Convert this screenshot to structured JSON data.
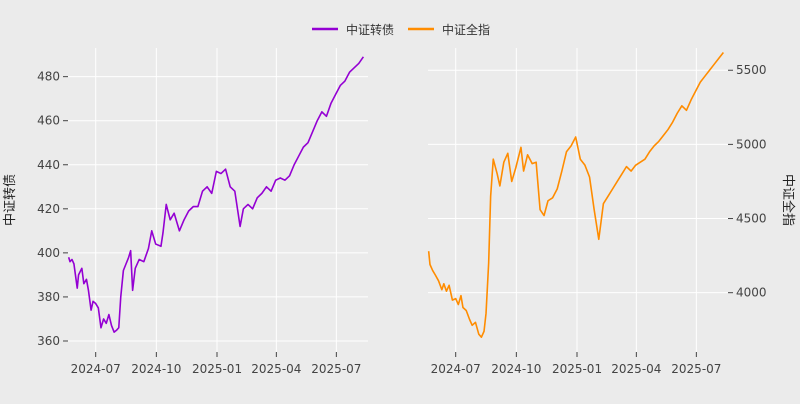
{
  "chart_data": [
    {
      "type": "line",
      "panel": "left",
      "x_axis": "date",
      "xlim": [
        "2024-05-20",
        "2025-08-18"
      ],
      "xticks": [
        "2024-07-01",
        "2024-10-01",
        "2025-01-01",
        "2025-04-01",
        "2025-07-01"
      ],
      "xtick_labels": [
        "2024-07",
        "2024-10",
        "2025-01",
        "2025-04",
        "2025-07"
      ],
      "ylim": [
        355,
        493
      ],
      "yticks": [
        360,
        380,
        400,
        420,
        440,
        460,
        480
      ],
      "ytick_labels": [
        "360",
        "380",
        "400",
        "420",
        "440",
        "460",
        "480"
      ],
      "ylabel": "中证转债",
      "y_axis_side": "left",
      "grid": true,
      "series": [
        {
          "name": "中证转债",
          "color": "#9400d3",
          "points": [
            [
              "2024-05-21",
              398
            ],
            [
              "2024-05-23",
              396
            ],
            [
              "2024-05-26",
              397
            ],
            [
              "2024-05-29",
              395
            ],
            [
              "2024-06-03",
              384
            ],
            [
              "2024-06-05",
              390
            ],
            [
              "2024-06-10",
              393
            ],
            [
              "2024-06-13",
              386
            ],
            [
              "2024-06-17",
              388
            ],
            [
              "2024-06-20",
              383
            ],
            [
              "2024-06-24",
              374
            ],
            [
              "2024-06-27",
              378
            ],
            [
              "2024-07-01",
              377
            ],
            [
              "2024-07-05",
              375
            ],
            [
              "2024-07-09",
              366
            ],
            [
              "2024-07-13",
              370
            ],
            [
              "2024-07-17",
              368
            ],
            [
              "2024-07-21",
              372
            ],
            [
              "2024-07-25",
              367
            ],
            [
              "2024-07-29",
              364
            ],
            [
              "2024-08-02",
              365
            ],
            [
              "2024-08-05",
              366
            ],
            [
              "2024-08-08",
              380
            ],
            [
              "2024-08-12",
              392
            ],
            [
              "2024-08-16",
              395
            ],
            [
              "2024-08-20",
              398
            ],
            [
              "2024-08-23",
              401
            ],
            [
              "2024-08-26",
              383
            ],
            [
              "2024-08-30",
              393
            ],
            [
              "2024-09-05",
              397
            ],
            [
              "2024-09-12",
              396
            ],
            [
              "2024-09-19",
              402
            ],
            [
              "2024-09-24",
              410
            ],
            [
              "2024-09-30",
              404
            ],
            [
              "2024-10-08",
              403
            ],
            [
              "2024-10-11",
              409
            ],
            [
              "2024-10-16",
              422
            ],
            [
              "2024-10-22",
              415
            ],
            [
              "2024-10-28",
              418
            ],
            [
              "2024-11-05",
              410
            ],
            [
              "2024-11-12",
              415
            ],
            [
              "2024-11-19",
              419
            ],
            [
              "2024-11-26",
              421
            ],
            [
              "2024-12-03",
              421
            ],
            [
              "2024-12-10",
              428
            ],
            [
              "2024-12-17",
              430
            ],
            [
              "2024-12-24",
              427
            ],
            [
              "2024-12-31",
              437
            ],
            [
              "2025-01-07",
              436
            ],
            [
              "2025-01-14",
              438
            ],
            [
              "2025-01-21",
              430
            ],
            [
              "2025-01-28",
              428
            ],
            [
              "2025-02-05",
              412
            ],
            [
              "2025-02-10",
              420
            ],
            [
              "2025-02-17",
              422
            ],
            [
              "2025-02-24",
              420
            ],
            [
              "2025-03-03",
              425
            ],
            [
              "2025-03-10",
              427
            ],
            [
              "2025-03-17",
              430
            ],
            [
              "2025-03-24",
              428
            ],
            [
              "2025-03-31",
              433
            ],
            [
              "2025-04-07",
              434
            ],
            [
              "2025-04-14",
              433
            ],
            [
              "2025-04-21",
              435
            ],
            [
              "2025-04-28",
              440
            ],
            [
              "2025-05-05",
              444
            ],
            [
              "2025-05-12",
              448
            ],
            [
              "2025-05-19",
              450
            ],
            [
              "2025-05-26",
              455
            ],
            [
              "2025-06-02",
              460
            ],
            [
              "2025-06-09",
              464
            ],
            [
              "2025-06-16",
              462
            ],
            [
              "2025-06-23",
              468
            ],
            [
              "2025-06-30",
              472
            ],
            [
              "2025-07-07",
              476
            ],
            [
              "2025-07-14",
              478
            ],
            [
              "2025-07-21",
              482
            ],
            [
              "2025-07-28",
              484
            ],
            [
              "2025-08-04",
              486
            ],
            [
              "2025-08-11",
              489
            ]
          ]
        }
      ]
    },
    {
      "type": "line",
      "panel": "right",
      "x_axis": "date",
      "xlim": [
        "2024-05-20",
        "2025-08-18"
      ],
      "xticks": [
        "2024-07-01",
        "2024-10-01",
        "2025-01-01",
        "2025-04-01",
        "2025-07-01"
      ],
      "xtick_labels": [
        "2024-07",
        "2024-10",
        "2025-01",
        "2025-04",
        "2025-07"
      ],
      "ylim": [
        3600,
        5650
      ],
      "yticks": [
        4000,
        4500,
        5000,
        5500
      ],
      "ytick_labels": [
        "4000",
        "4500",
        "5000",
        "5500"
      ],
      "ylabel": "中证全指",
      "y_axis_side": "right",
      "grid": true,
      "series": [
        {
          "name": "中证全指",
          "color": "#ff8c00",
          "points": [
            [
              "2024-05-21",
              4280
            ],
            [
              "2024-05-23",
              4190
            ],
            [
              "2024-05-27",
              4150
            ],
            [
              "2024-05-31",
              4120
            ],
            [
              "2024-06-05",
              4080
            ],
            [
              "2024-06-10",
              4020
            ],
            [
              "2024-06-13",
              4060
            ],
            [
              "2024-06-17",
              4010
            ],
            [
              "2024-06-21",
              4050
            ],
            [
              "2024-06-26",
              3950
            ],
            [
              "2024-07-01",
              3960
            ],
            [
              "2024-07-05",
              3920
            ],
            [
              "2024-07-09",
              3980
            ],
            [
              "2024-07-12",
              3900
            ],
            [
              "2024-07-17",
              3880
            ],
            [
              "2024-07-22",
              3820
            ],
            [
              "2024-07-26",
              3780
            ],
            [
              "2024-07-31",
              3800
            ],
            [
              "2024-08-05",
              3720
            ],
            [
              "2024-08-09",
              3700
            ],
            [
              "2024-08-13",
              3740
            ],
            [
              "2024-08-16",
              3860
            ],
            [
              "2024-08-20",
              4200
            ],
            [
              "2024-08-23",
              4650
            ],
            [
              "2024-08-27",
              4900
            ],
            [
              "2024-09-02",
              4800
            ],
            [
              "2024-09-06",
              4720
            ],
            [
              "2024-09-12",
              4880
            ],
            [
              "2024-09-18",
              4940
            ],
            [
              "2024-09-24",
              4750
            ],
            [
              "2024-09-30",
              4840
            ],
            [
              "2024-10-08",
              4980
            ],
            [
              "2024-10-12",
              4820
            ],
            [
              "2024-10-18",
              4930
            ],
            [
              "2024-10-25",
              4870
            ],
            [
              "2024-10-31",
              4880
            ],
            [
              "2024-11-06",
              4560
            ],
            [
              "2024-11-12",
              4520
            ],
            [
              "2024-11-18",
              4620
            ],
            [
              "2024-11-25",
              4640
            ],
            [
              "2024-12-02",
              4700
            ],
            [
              "2024-12-09",
              4820
            ],
            [
              "2024-12-16",
              4950
            ],
            [
              "2024-12-23",
              4990
            ],
            [
              "2024-12-30",
              5050
            ],
            [
              "2025-01-06",
              4900
            ],
            [
              "2025-01-13",
              4860
            ],
            [
              "2025-01-20",
              4780
            ],
            [
              "2025-01-27",
              4560
            ],
            [
              "2025-02-03",
              4360
            ],
            [
              "2025-02-10",
              4600
            ],
            [
              "2025-02-17",
              4650
            ],
            [
              "2025-02-24",
              4700
            ],
            [
              "2025-03-03",
              4750
            ],
            [
              "2025-03-10",
              4800
            ],
            [
              "2025-03-17",
              4850
            ],
            [
              "2025-03-24",
              4820
            ],
            [
              "2025-03-31",
              4860
            ],
            [
              "2025-04-07",
              4880
            ],
            [
              "2025-04-14",
              4900
            ],
            [
              "2025-04-21",
              4950
            ],
            [
              "2025-04-28",
              4990
            ],
            [
              "2025-05-05",
              5020
            ],
            [
              "2025-05-12",
              5060
            ],
            [
              "2025-05-19",
              5100
            ],
            [
              "2025-05-26",
              5150
            ],
            [
              "2025-06-02",
              5210
            ],
            [
              "2025-06-09",
              5260
            ],
            [
              "2025-06-16",
              5230
            ],
            [
              "2025-06-23",
              5300
            ],
            [
              "2025-06-30",
              5360
            ],
            [
              "2025-07-07",
              5420
            ],
            [
              "2025-07-14",
              5460
            ],
            [
              "2025-07-21",
              5500
            ],
            [
              "2025-07-28",
              5540
            ],
            [
              "2025-08-04",
              5580
            ],
            [
              "2025-08-11",
              5620
            ]
          ]
        }
      ]
    }
  ],
  "legend": {
    "placement": "top-center",
    "items": [
      {
        "name": "中证转债",
        "color": "#9400d3"
      },
      {
        "name": "中证全指",
        "color": "#ff8c00"
      }
    ]
  }
}
